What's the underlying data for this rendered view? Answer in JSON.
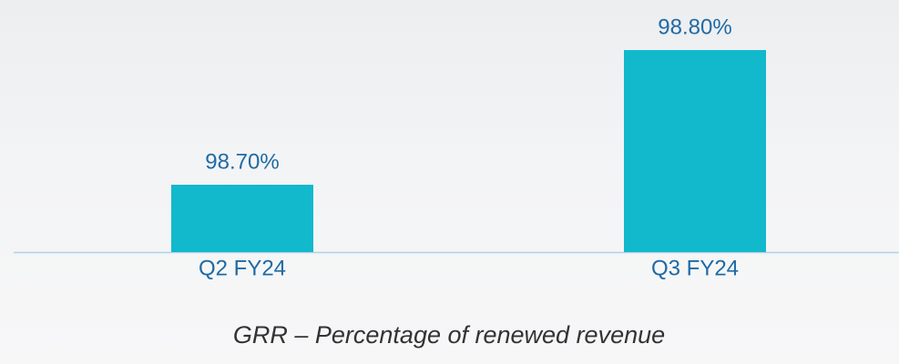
{
  "chart_data": {
    "type": "bar",
    "categories": [
      "Q2 FY24",
      "Q3 FY24"
    ],
    "values": [
      98.7,
      98.8
    ],
    "value_labels": [
      "98.70%",
      "98.80%"
    ],
    "color": "#12b8cc",
    "ylim": [
      98.65,
      98.82
    ],
    "xlabel": "GRR – Percentage of renewed revenue"
  }
}
